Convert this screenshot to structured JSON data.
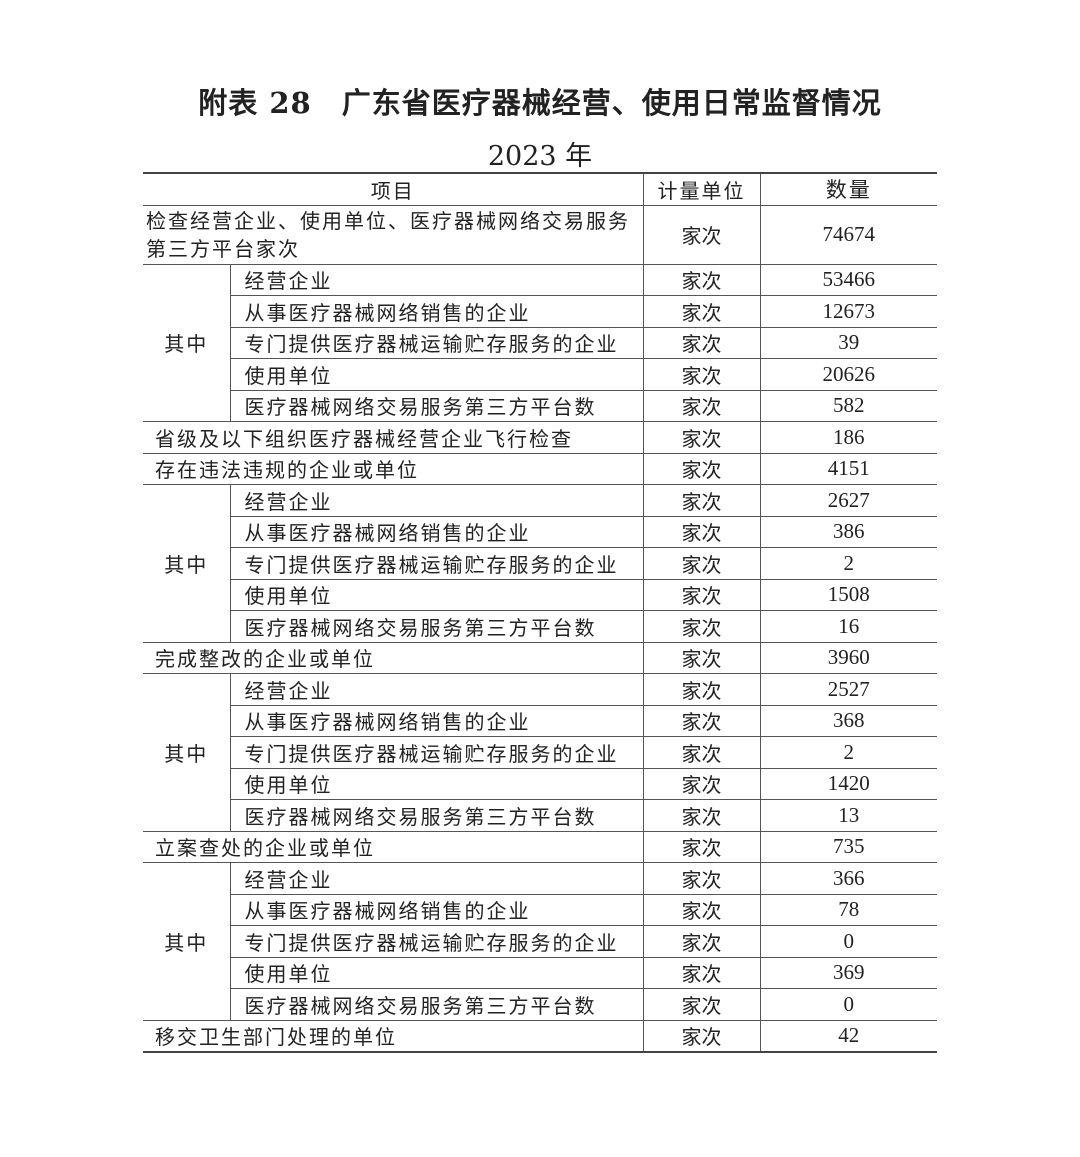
{
  "title": "附表 28　广东省医疗器械经营、使用日常监督情况",
  "year": "2023 年",
  "headers": {
    "item": "项目",
    "unit": "计量单位",
    "count": "数量"
  },
  "group_label": "其中",
  "rows": [
    {
      "item": "检查经营企业、使用单位、医疗器械网络交易服务第三方平台家次",
      "unit": "家次",
      "count": "74674",
      "sub": [
        {
          "item": "经营企业",
          "unit": "家次",
          "count": "53466"
        },
        {
          "item": "从事医疗器械网络销售的企业",
          "unit": "家次",
          "count": "12673"
        },
        {
          "item": "专门提供医疗器械运输贮存服务的企业",
          "unit": "家次",
          "count": "39"
        },
        {
          "item": "使用单位",
          "unit": "家次",
          "count": "20626"
        },
        {
          "item": "医疗器械网络交易服务第三方平台数",
          "unit": "家次",
          "count": "582"
        }
      ]
    },
    {
      "item": "省级及以下组织医疗器械经营企业飞行检查",
      "unit": "家次",
      "count": "186"
    },
    {
      "item": "存在违法违规的企业或单位",
      "unit": "家次",
      "count": "4151",
      "sub": [
        {
          "item": "经营企业",
          "unit": "家次",
          "count": "2627"
        },
        {
          "item": "从事医疗器械网络销售的企业",
          "unit": "家次",
          "count": "386"
        },
        {
          "item": "专门提供医疗器械运输贮存服务的企业",
          "unit": "家次",
          "count": "2"
        },
        {
          "item": "使用单位",
          "unit": "家次",
          "count": "1508"
        },
        {
          "item": "医疗器械网络交易服务第三方平台数",
          "unit": "家次",
          "count": "16"
        }
      ]
    },
    {
      "item": "完成整改的企业或单位",
      "unit": "家次",
      "count": "3960",
      "sub": [
        {
          "item": "经营企业",
          "unit": "家次",
          "count": "2527"
        },
        {
          "item": "从事医疗器械网络销售的企业",
          "unit": "家次",
          "count": "368"
        },
        {
          "item": "专门提供医疗器械运输贮存服务的企业",
          "unit": "家次",
          "count": "2"
        },
        {
          "item": "使用单位",
          "unit": "家次",
          "count": "1420"
        },
        {
          "item": "医疗器械网络交易服务第三方平台数",
          "unit": "家次",
          "count": "13"
        }
      ]
    },
    {
      "item": "立案查处的企业或单位",
      "unit": "家次",
      "count": "735",
      "sub": [
        {
          "item": "经营企业",
          "unit": "家次",
          "count": "366"
        },
        {
          "item": "从事医疗器械网络销售的企业",
          "unit": "家次",
          "count": "78"
        },
        {
          "item": "专门提供医疗器械运输贮存服务的企业",
          "unit": "家次",
          "count": "0"
        },
        {
          "item": "使用单位",
          "unit": "家次",
          "count": "369"
        },
        {
          "item": "医疗器械网络交易服务第三方平台数",
          "unit": "家次",
          "count": "0"
        }
      ]
    },
    {
      "item": "移交卫生部门处理的单位",
      "unit": "家次",
      "count": "42"
    }
  ]
}
